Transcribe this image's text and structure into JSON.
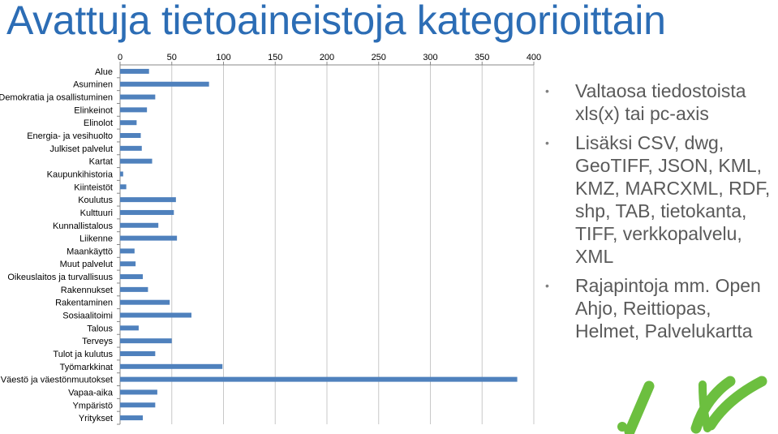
{
  "title": "Avattuja tietoaineistoja kategorioittain",
  "chart_data": {
    "type": "bar",
    "orientation": "horizontal",
    "categories": [
      "Alue",
      "Asuminen",
      "Demokratia ja osallistuminen",
      "Elinkeinot",
      "Elinolot",
      "Energia- ja vesihuolto",
      "Julkiset palvelut",
      "Kartat",
      "Kaupunkihistoria",
      "Kiinteistöt",
      "Koulutus",
      "Kulttuuri",
      "Kunnallistalous",
      "Liikenne",
      "Maankäyttö",
      "Muut palvelut",
      "Oikeuslaitos ja turvallisuus",
      "Rakennukset",
      "Rakentaminen",
      "Sosiaalitoimi",
      "Talous",
      "Terveys",
      "Tulot ja kulutus",
      "Työmarkkinat",
      "Väestö ja väestönmuutokset",
      "Vapaa-aika",
      "Ympäristö",
      "Yritykset"
    ],
    "values": [
      28,
      86,
      34,
      26,
      16,
      20,
      21,
      31,
      3,
      6,
      54,
      52,
      37,
      55,
      14,
      15,
      22,
      27,
      48,
      69,
      18,
      50,
      34,
      99,
      384,
      36,
      34,
      22
    ],
    "xlim": [
      0,
      400
    ],
    "xticks": [
      "0",
      "50",
      "100",
      "150",
      "200",
      "250",
      "300",
      "350",
      "400"
    ],
    "xaxis_position": "top",
    "grid": true,
    "bar_color": "#4f81bd"
  },
  "bullets": [
    "Valtaosa tiedostoista xls(x) tai pc-axis",
    "Lisäksi CSV, dwg, GeoTIFF, JSON, KML, KMZ, MARCXML, RDF, shp, TAB, tietokanta, TIFF, verkkopalvelu, XML",
    "Rajapintoja mm. Open Ahjo, Reittiopas, Helmet, Palvelukartta"
  ],
  "bullet_glyph": "•",
  "colors": {
    "title": "#2c6db5",
    "bullet_text": "#5a5a5a",
    "logo": "#6cbf3f"
  }
}
